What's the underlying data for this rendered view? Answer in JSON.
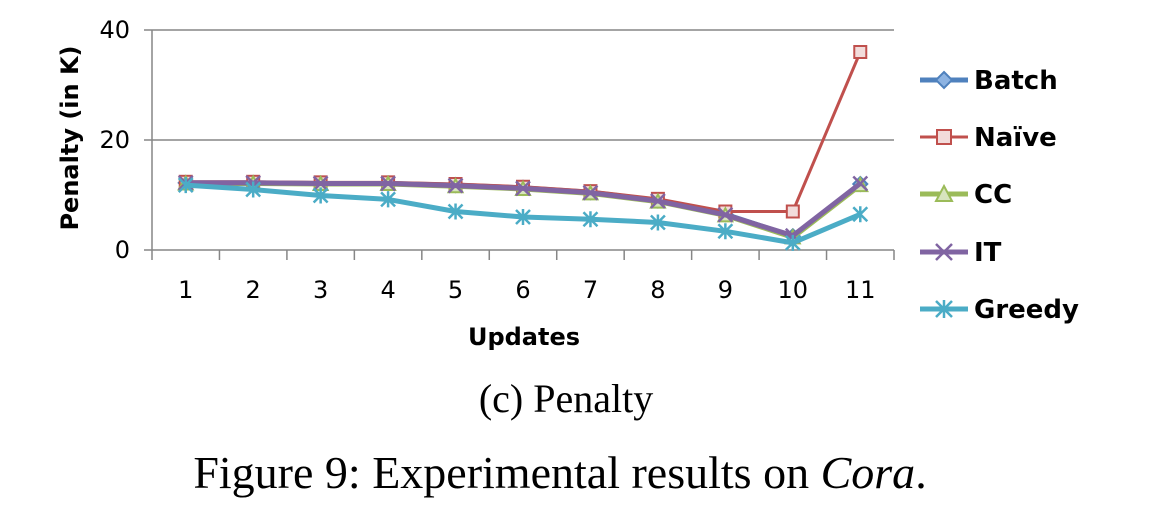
{
  "chart_data": {
    "type": "line",
    "xlabel": "Updates",
    "ylabel": "Penalty (in K)",
    "x": [
      "1",
      "2",
      "3",
      "4",
      "5",
      "6",
      "7",
      "8",
      "9",
      "10",
      "11"
    ],
    "ylim": [
      0,
      40
    ],
    "yticks": [
      "0",
      "20",
      "40"
    ],
    "grid": true,
    "legend": "right",
    "series": [
      {
        "name": "Batch",
        "color": "#4F81BD",
        "marker": "diamond",
        "values": [
          12.2,
          12.2,
          12.1,
          12.1,
          11.8,
          11.3,
          10.5,
          9.0,
          6.5,
          2.5,
          12.0
        ]
      },
      {
        "name": "Naïve",
        "color": "#C0504D",
        "marker": "square",
        "values": [
          12.4,
          12.4,
          12.3,
          12.3,
          12.0,
          11.5,
          10.7,
          9.3,
          7.0,
          7.0,
          36.0
        ]
      },
      {
        "name": "CC",
        "color": "#9BBB59",
        "marker": "triangle",
        "values": [
          12.1,
          12.1,
          12.0,
          12.0,
          11.6,
          11.1,
          10.3,
          8.8,
          6.3,
          2.3,
          11.8
        ]
      },
      {
        "name": "IT",
        "color": "#8064A2",
        "marker": "x",
        "values": [
          12.2,
          12.2,
          12.1,
          12.1,
          11.7,
          11.2,
          10.4,
          8.9,
          6.4,
          2.6,
          12.1
        ]
      },
      {
        "name": "Greedy",
        "color": "#4BACC6",
        "marker": "star",
        "values": [
          11.8,
          11.0,
          9.9,
          9.2,
          7.0,
          6.0,
          5.6,
          5.0,
          3.4,
          1.3,
          6.5
        ]
      }
    ]
  },
  "captions": {
    "subfigure": "(c) Penalty",
    "figure_prefix": "Figure 9: Experimental results on ",
    "figure_italic": "Cora",
    "figure_suffix": "."
  }
}
